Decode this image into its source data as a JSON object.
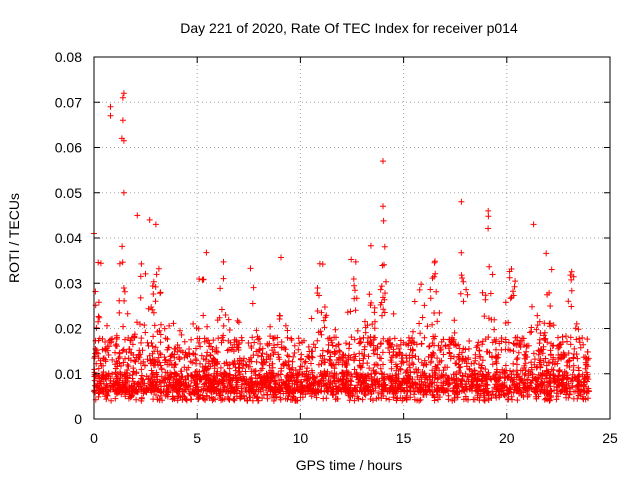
{
  "chart_data": {
    "type": "scatter",
    "title": "Day 221 of 2020, Rate Of TEC Index for receiver p014",
    "xlabel": "GPS time / hours",
    "ylabel": "ROTI / TECUs",
    "xlim": [
      0,
      25
    ],
    "ylim": [
      0,
      0.08
    ],
    "xticks": [
      0,
      5,
      10,
      15,
      20,
      25
    ],
    "yticks": [
      0,
      0.01,
      0.02,
      0.03,
      0.04,
      0.05,
      0.06,
      0.07,
      0.08
    ],
    "xtick_labels": [
      "0",
      "5",
      "10",
      "15",
      "20",
      "25"
    ],
    "ytick_labels": [
      "0",
      "0.01",
      "0.02",
      "0.03",
      "0.04",
      "0.05",
      "0.06",
      "0.07",
      "0.08"
    ],
    "grid": true,
    "marker": "+",
    "series": [
      {
        "name": "p014",
        "color": "#ff0000",
        "x_range": [
          0,
          24
        ],
        "typical_range": [
          0.005,
          0.02
        ],
        "notable_points": [
          {
            "x": 0.8,
            "y": 0.069
          },
          {
            "x": 0.8,
            "y": 0.067
          },
          {
            "x": 1.4,
            "y": 0.071
          },
          {
            "x": 1.45,
            "y": 0.072
          },
          {
            "x": 1.4,
            "y": 0.066
          },
          {
            "x": 1.35,
            "y": 0.062
          },
          {
            "x": 1.45,
            "y": 0.0615
          },
          {
            "x": 1.45,
            "y": 0.05
          },
          {
            "x": 0.0,
            "y": 0.041
          },
          {
            "x": 2.1,
            "y": 0.045
          },
          {
            "x": 2.7,
            "y": 0.044
          },
          {
            "x": 3.0,
            "y": 0.043
          },
          {
            "x": 14.0,
            "y": 0.057
          },
          {
            "x": 14.0,
            "y": 0.047
          },
          {
            "x": 17.8,
            "y": 0.048
          },
          {
            "x": 19.1,
            "y": 0.046
          },
          {
            "x": 21.3,
            "y": 0.043
          }
        ]
      }
    ]
  }
}
